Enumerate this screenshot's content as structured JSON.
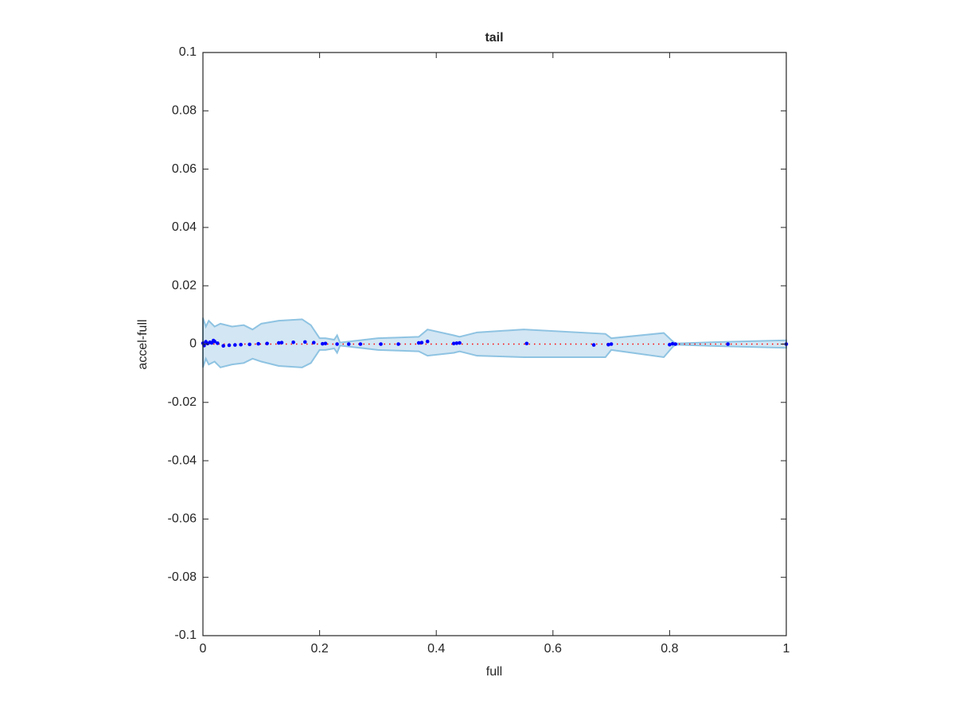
{
  "chart_data": {
    "type": "scatter",
    "title": "tail",
    "xlabel": "full",
    "ylabel": "accel-full",
    "xlim": [
      0,
      1
    ],
    "ylim": [
      -0.1,
      0.1
    ],
    "xticks": [
      0,
      0.2,
      0.4,
      0.6,
      0.8,
      1
    ],
    "yticks": [
      -0.1,
      -0.08,
      -0.06,
      -0.04,
      -0.02,
      0,
      0.02,
      0.04,
      0.06,
      0.08,
      0.1
    ],
    "grid": false,
    "color": "#0000ff",
    "x": [
      0,
      0.002,
      0.005,
      0.008,
      0.012,
      0.015,
      0.018,
      0.02,
      0.025,
      0.035,
      0.045,
      0.055,
      0.065,
      0.08,
      0.095,
      0.11,
      0.13,
      0.135,
      0.155,
      0.175,
      0.19,
      0.205,
      0.21,
      0.23,
      0.25,
      0.27,
      0.305,
      0.335,
      0.37,
      0.375,
      0.385,
      0.43,
      0.435,
      0.44,
      0.555,
      0.67,
      0.695,
      0.7,
      0.8,
      0.805,
      0.81,
      0.9,
      1.0
    ],
    "values": [
      0.0003,
      -0.0005,
      0.0008,
      0.0002,
      0.0006,
      0.0004,
      0.0012,
      0.0009,
      0.0003,
      -0.0006,
      -0.0004,
      -0.0003,
      -0.0002,
      -0.0001,
      0.0001,
      0.0002,
      0.0004,
      0.0005,
      0.0006,
      0.0007,
      0.0005,
      0.0001,
      0.0002,
      0,
      0,
      0,
      0,
      0,
      0.0004,
      0.0005,
      0.0009,
      0.0002,
      0.0003,
      0.0004,
      0.0002,
      -0.0003,
      -0.0002,
      0,
      -0.0002,
      0.0001,
      0,
      0,
      0
    ],
    "line": {
      "x": [
        0,
        1
      ],
      "values": [
        0,
        0
      ],
      "color": "#ff0000"
    },
    "band": {
      "color": "#8ec3e2",
      "fill": "#d3e6f3",
      "x": [
        0,
        0.005,
        0.01,
        0.02,
        0.03,
        0.05,
        0.07,
        0.085,
        0.1,
        0.13,
        0.17,
        0.185,
        0.2,
        0.21,
        0.225,
        0.23,
        0.235,
        0.3,
        0.37,
        0.385,
        0.43,
        0.44,
        0.47,
        0.55,
        0.69,
        0.7,
        0.79,
        0.805,
        0.81,
        0.9,
        1.0
      ],
      "upper": [
        0.009,
        0.006,
        0.008,
        0.006,
        0.007,
        0.006,
        0.0065,
        0.005,
        0.007,
        0.008,
        0.0085,
        0.0065,
        0.002,
        0.002,
        0.0015,
        0.003,
        0.0005,
        0.002,
        0.0025,
        0.005,
        0.003,
        0.0025,
        0.004,
        0.005,
        0.0035,
        0.002,
        0.0038,
        0.001,
        0.0002,
        0.0008,
        0.0013
      ],
      "lower": [
        -0.008,
        -0.005,
        -0.007,
        -0.006,
        -0.008,
        -0.007,
        -0.0065,
        -0.005,
        -0.006,
        -0.0075,
        -0.008,
        -0.0065,
        -0.002,
        -0.002,
        -0.0015,
        -0.003,
        -0.0005,
        -0.002,
        -0.0025,
        -0.004,
        -0.003,
        -0.0025,
        -0.004,
        -0.0045,
        -0.0045,
        -0.002,
        -0.0045,
        -0.001,
        -0.0002,
        -0.0008,
        -0.0013
      ]
    }
  }
}
